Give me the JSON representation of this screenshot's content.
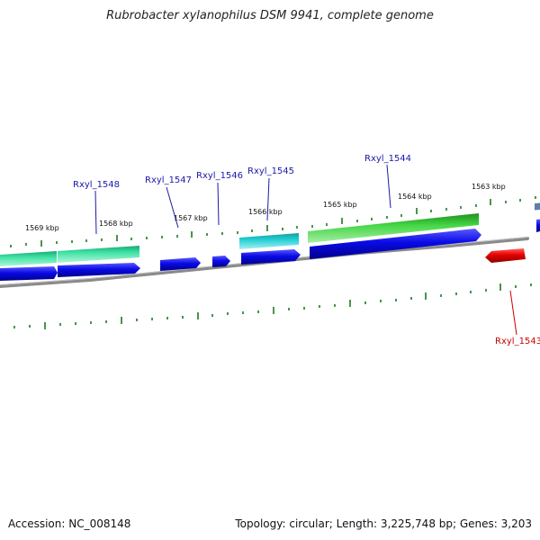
{
  "title": "Rubrobacter xylanophilus DSM 9941, complete genome",
  "accession": "Accession: NC_008148",
  "topology": "Topology: circular; Length: 3,225,748 bp; Genes: 3,203",
  "kbp_labels": [
    "1569 kbp",
    "1568 kbp",
    "1567 kbp",
    "1566 kbp",
    "1565 kbp",
    "1564 kbp",
    "1563 kbp"
  ],
  "gene_labels": [
    "Rxyl_1548",
    "Rxyl_1547",
    "Rxyl_1546",
    "Rxyl_1545",
    "Rxyl_1544",
    "Rxyl_1543"
  ],
  "colors": {
    "gene_blue": "#0a0ae6",
    "gene_red": "#e60000",
    "gene_green": "#33cc33",
    "gene_cyan": "#1ec8c8",
    "gene_mint": "#33dd99",
    "label_blue": "#1a1aa8",
    "label_red": "#cc0000",
    "tick_green": "#1f7a1f",
    "backbone": "#7a7a7a"
  }
}
